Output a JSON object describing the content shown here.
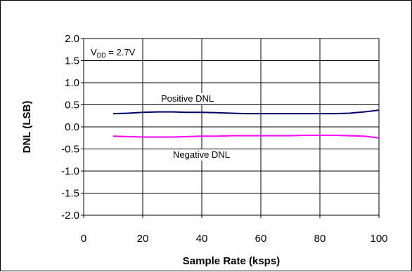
{
  "chart_data": {
    "type": "line",
    "xlabel": "Sample Rate (ksps)",
    "ylabel": "DNL (LSB)",
    "xlim": [
      0,
      100
    ],
    "ylim": [
      -2.0,
      2.0
    ],
    "x_ticks": [
      "0",
      "20",
      "40",
      "60",
      "80",
      "100"
    ],
    "y_ticks": [
      "2.0",
      "1.5",
      "1.0",
      "0.5",
      "0.0",
      "-0.5",
      "-1.0",
      "-1.5",
      "-2.0"
    ],
    "grid": true,
    "legend": "none",
    "condition": {
      "symbol_main": "V",
      "symbol_sub": "DD",
      "value": " = 2.7V"
    },
    "series": [
      {
        "name": "Positive DNL",
        "color": "#000066",
        "x": [
          10,
          15,
          20,
          25,
          30,
          35,
          40,
          45,
          50,
          55,
          60,
          65,
          70,
          75,
          80,
          85,
          90,
          95,
          100
        ],
        "y": [
          0.3,
          0.31,
          0.33,
          0.34,
          0.34,
          0.33,
          0.33,
          0.32,
          0.31,
          0.3,
          0.3,
          0.3,
          0.3,
          0.3,
          0.3,
          0.3,
          0.31,
          0.34,
          0.38
        ]
      },
      {
        "name": "Negative DNL",
        "color": "#ff00ff",
        "x": [
          10,
          15,
          20,
          25,
          30,
          35,
          40,
          45,
          50,
          55,
          60,
          65,
          70,
          75,
          80,
          85,
          90,
          95,
          100
        ],
        "y": [
          -0.21,
          -0.22,
          -0.23,
          -0.23,
          -0.23,
          -0.22,
          -0.21,
          -0.21,
          -0.2,
          -0.2,
          -0.2,
          -0.2,
          -0.2,
          -0.19,
          -0.19,
          -0.19,
          -0.2,
          -0.21,
          -0.25
        ]
      }
    ],
    "annotations": [
      {
        "text": "Positive DNL",
        "series": 0
      },
      {
        "text": "Negative DNL",
        "series": 1
      }
    ]
  }
}
